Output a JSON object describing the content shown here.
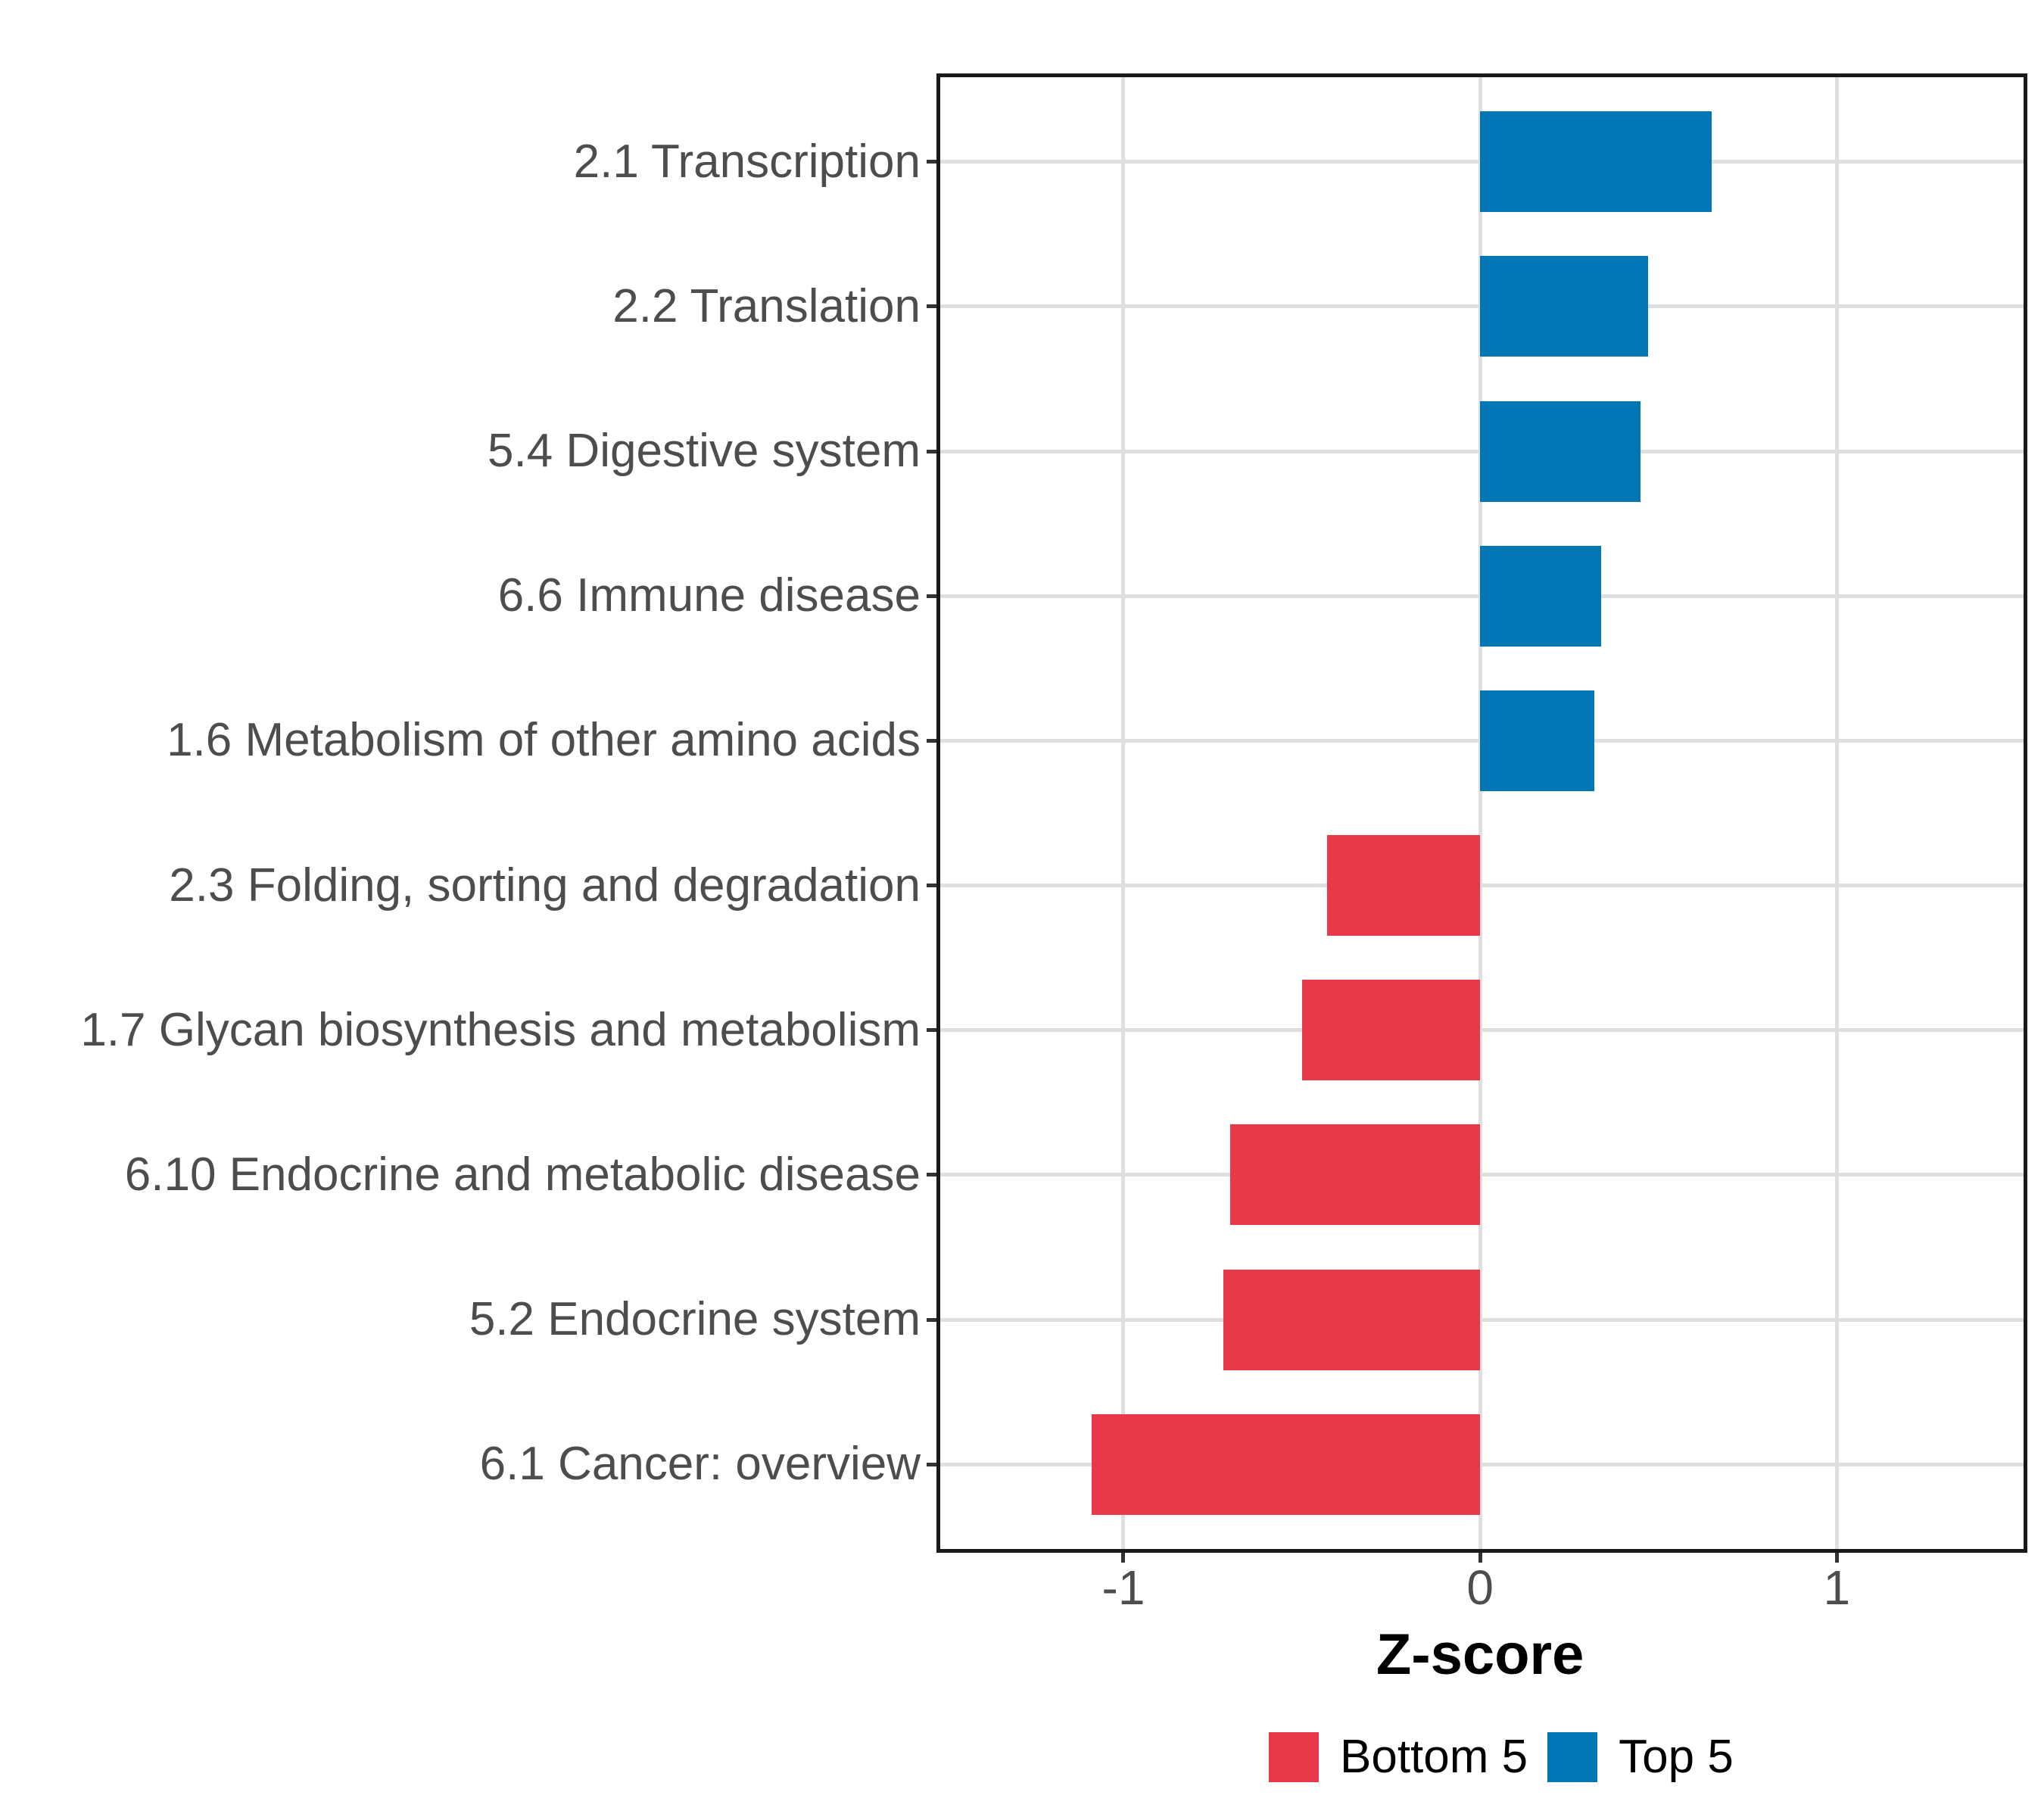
{
  "chart_data": {
    "type": "bar",
    "orientation": "horizontal",
    "title": "",
    "xlabel": "Z-score",
    "ylabel": "",
    "categories": [
      "2.1 Transcription",
      "2.2 Translation",
      "5.4 Digestive system",
      "6.6 Immune disease",
      "1.6 Metabolism of other amino acids",
      "2.3 Folding, sorting and degradation",
      "1.7 Glycan biosynthesis and metabolism",
      "6.10 Endocrine and metabolic disease",
      "5.2 Endocrine system",
      "6.1 Cancer: overview"
    ],
    "values": [
      0.65,
      0.47,
      0.45,
      0.34,
      0.32,
      -0.43,
      -0.5,
      -0.7,
      -0.72,
      -1.09
    ],
    "bar_groups": [
      "Top 5",
      "Top 5",
      "Top 5",
      "Top 5",
      "Top 5",
      "Bottom 5",
      "Bottom 5",
      "Bottom 5",
      "Bottom 5",
      "Bottom 5"
    ],
    "x_ticks": [
      -1,
      0,
      1
    ],
    "x_tick_labels": [
      "-1",
      "0",
      "1"
    ],
    "xlim": [
      -1.52,
      1.53
    ],
    "grid": "major",
    "gridline_color": "#DFDFDF",
    "panel_border_color": "#1A1A1A",
    "axis_text_color": "#4D4D4D",
    "colors": {
      "Top 5": "#0076B4",
      "Bottom 5": "#E8394A"
    },
    "legend": {
      "position": "bottom",
      "entries": [
        {
          "label": "Bottom 5",
          "color": "#E8394A"
        },
        {
          "label": "Top 5",
          "color": "#0076B4"
        }
      ]
    }
  }
}
